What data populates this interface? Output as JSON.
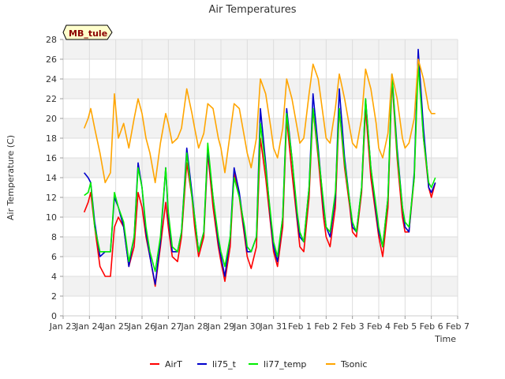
{
  "chart_data": {
    "type": "line",
    "title": "Air Temperatures",
    "xlabel": "Time",
    "ylabel": "Air Temperature (C)",
    "station_label": "MB_tule",
    "ylim": [
      0,
      28
    ],
    "yticks": [
      0,
      2,
      4,
      6,
      8,
      10,
      12,
      14,
      16,
      18,
      20,
      22,
      24,
      26,
      28
    ],
    "xlim": [
      0,
      15
    ],
    "xticks": [
      {
        "v": 0,
        "label": "Jan 23"
      },
      {
        "v": 1,
        "label": "Jan 24"
      },
      {
        "v": 2,
        "label": "Jan 25"
      },
      {
        "v": 3,
        "label": "Jan 26"
      },
      {
        "v": 4,
        "label": "Jan 27"
      },
      {
        "v": 5,
        "label": "Jan 28"
      },
      {
        "v": 6,
        "label": "Jan 29"
      },
      {
        "v": 7,
        "label": "Jan 30"
      },
      {
        "v": 8,
        "label": "Jan 31"
      },
      {
        "v": 9,
        "label": "Feb 1"
      },
      {
        "v": 10,
        "label": "Feb 2"
      },
      {
        "v": 11,
        "label": "Feb 3"
      },
      {
        "v": 12,
        "label": "Feb 4"
      },
      {
        "v": 13,
        "label": "Feb 5"
      },
      {
        "v": 14,
        "label": "Feb 6"
      },
      {
        "v": 15,
        "label": "Feb 7"
      }
    ],
    "grid": true,
    "legend_position": "bottom",
    "series": [
      {
        "name": "AirT",
        "color": "#ff0000",
        "x": [
          0.8,
          0.95,
          1.05,
          1.2,
          1.4,
          1.6,
          1.8,
          1.95,
          2.1,
          2.3,
          2.5,
          2.7,
          2.85,
          3.0,
          3.15,
          3.3,
          3.5,
          3.7,
          3.9,
          4.0,
          4.15,
          4.35,
          4.5,
          4.7,
          4.9,
          5.0,
          5.15,
          5.35,
          5.5,
          5.7,
          5.9,
          6.0,
          6.15,
          6.35,
          6.5,
          6.7,
          6.9,
          7.0,
          7.15,
          7.35,
          7.5,
          7.7,
          7.9,
          8.0,
          8.15,
          8.35,
          8.5,
          8.7,
          8.9,
          9.0,
          9.15,
          9.35,
          9.5,
          9.7,
          9.9,
          10.0,
          10.15,
          10.35,
          10.5,
          10.7,
          10.9,
          11.0,
          11.15,
          11.35,
          11.5,
          11.7,
          11.9,
          12.0,
          12.15,
          12.35,
          12.5,
          12.7,
          12.9,
          13.0,
          13.15,
          13.35,
          13.5,
          13.7,
          13.9,
          14.0,
          14.15
        ],
        "y": [
          10.5,
          11.5,
          12.5,
          9.0,
          5.0,
          4.0,
          4.0,
          9.0,
          10.0,
          9.0,
          5.0,
          7.0,
          12.5,
          11.0,
          8.0,
          6.0,
          3.0,
          7.0,
          11.5,
          9.0,
          6.0,
          5.5,
          8.0,
          15.5,
          12.0,
          9.0,
          6.0,
          8.0,
          16.5,
          11.0,
          7.0,
          5.5,
          3.5,
          7.0,
          14.5,
          12.0,
          8.0,
          6.0,
          4.8,
          7.0,
          18.0,
          14.0,
          9.0,
          6.5,
          5.0,
          9.0,
          20.0,
          14.5,
          9.5,
          7.0,
          6.5,
          12.0,
          21.0,
          16.0,
          10.0,
          8.0,
          7.0,
          11.0,
          21.0,
          15.0,
          11.0,
          8.5,
          8.0,
          12.5,
          21.0,
          14.0,
          10.0,
          8.0,
          6.0,
          11.0,
          24.0,
          16.0,
          10.0,
          8.5,
          8.5,
          14.0,
          26.5,
          18.0,
          13.0,
          12.0,
          13.5
        ]
      },
      {
        "name": "li75_t",
        "color": "#0000cc",
        "x": [
          0.8,
          0.95,
          1.05,
          1.2,
          1.4,
          1.6,
          1.8,
          1.95,
          2.1,
          2.3,
          2.5,
          2.7,
          2.85,
          3.0,
          3.15,
          3.3,
          3.5,
          3.7,
          3.9,
          4.0,
          4.15,
          4.35,
          4.5,
          4.7,
          4.9,
          5.0,
          5.15,
          5.35,
          5.5,
          5.7,
          5.9,
          6.0,
          6.15,
          6.35,
          6.5,
          6.7,
          6.9,
          7.0,
          7.15,
          7.35,
          7.5,
          7.7,
          7.9,
          8.0,
          8.15,
          8.35,
          8.5,
          8.7,
          8.9,
          9.0,
          9.15,
          9.35,
          9.5,
          9.7,
          9.9,
          10.0,
          10.15,
          10.35,
          10.5,
          10.7,
          10.9,
          11.0,
          11.15,
          11.35,
          11.5,
          11.7,
          11.9,
          12.0,
          12.15,
          12.35,
          12.5,
          12.7,
          12.9,
          13.0,
          13.15,
          13.35,
          13.5,
          13.7,
          13.9,
          14.0,
          14.15
        ],
        "y": [
          14.5,
          14.0,
          13.5,
          9.5,
          6.0,
          6.5,
          6.5,
          12.0,
          11.0,
          9.0,
          5.0,
          8.0,
          15.5,
          13.0,
          8.5,
          6.0,
          3.2,
          7.5,
          15.0,
          10.0,
          6.5,
          6.5,
          8.5,
          17.0,
          12.5,
          10.0,
          6.5,
          8.5,
          17.0,
          12.0,
          7.5,
          6.0,
          4.0,
          8.0,
          15.0,
          12.5,
          8.5,
          6.5,
          6.5,
          8.0,
          21.0,
          15.5,
          9.5,
          7.0,
          5.5,
          10.0,
          21.0,
          16.0,
          10.0,
          8.0,
          7.5,
          13.0,
          22.5,
          17.0,
          11.0,
          9.0,
          8.0,
          12.0,
          23.0,
          16.0,
          11.5,
          9.0,
          8.5,
          13.0,
          22.0,
          15.0,
          10.5,
          8.5,
          7.0,
          12.0,
          24.5,
          17.0,
          11.0,
          9.0,
          8.5,
          14.5,
          27.0,
          19.0,
          13.0,
          12.5,
          13.5
        ]
      },
      {
        "name": "li77_temp",
        "color": "#00ee00",
        "x": [
          0.8,
          0.95,
          1.05,
          1.2,
          1.4,
          1.6,
          1.8,
          1.95,
          2.1,
          2.3,
          2.5,
          2.7,
          2.85,
          3.0,
          3.15,
          3.3,
          3.5,
          3.7,
          3.9,
          4.0,
          4.15,
          4.35,
          4.5,
          4.7,
          4.9,
          5.0,
          5.15,
          5.35,
          5.5,
          5.7,
          5.9,
          6.0,
          6.15,
          6.35,
          6.5,
          6.7,
          6.9,
          7.0,
          7.15,
          7.35,
          7.5,
          7.7,
          7.9,
          8.0,
          8.15,
          8.35,
          8.5,
          8.7,
          8.9,
          9.0,
          9.15,
          9.35,
          9.5,
          9.7,
          9.9,
          10.0,
          10.15,
          10.35,
          10.5,
          10.7,
          10.9,
          11.0,
          11.15,
          11.35,
          11.5,
          11.7,
          11.9,
          12.0,
          12.15,
          12.35,
          12.5,
          12.7,
          12.9,
          13.0,
          13.15,
          13.35,
          13.5,
          13.7,
          13.9,
          14.0,
          14.15
        ],
        "y": [
          12.2,
          12.5,
          13.5,
          9.0,
          6.5,
          6.5,
          6.5,
          12.5,
          11.0,
          9.5,
          5.5,
          8.0,
          15.0,
          13.0,
          9.0,
          6.5,
          4.5,
          8.0,
          15.0,
          10.5,
          7.0,
          6.5,
          8.5,
          16.5,
          12.0,
          10.0,
          6.5,
          8.5,
          17.5,
          12.0,
          8.0,
          6.5,
          5.0,
          8.0,
          14.0,
          12.0,
          9.0,
          7.0,
          6.5,
          8.0,
          19.5,
          15.0,
          10.0,
          7.5,
          6.0,
          10.0,
          20.5,
          16.0,
          10.5,
          8.5,
          7.5,
          13.0,
          21.0,
          16.5,
          11.5,
          9.0,
          8.5,
          12.5,
          21.0,
          15.5,
          11.5,
          9.5,
          8.5,
          13.0,
          22.0,
          15.0,
          11.0,
          9.0,
          7.0,
          12.0,
          24.5,
          16.5,
          11.0,
          9.5,
          9.0,
          14.0,
          25.5,
          18.0,
          13.5,
          13.0,
          14.0
        ]
      },
      {
        "name": "Tsonic",
        "color": "#ffa500",
        "x": [
          0.8,
          0.95,
          1.05,
          1.2,
          1.4,
          1.6,
          1.8,
          1.95,
          2.1,
          2.3,
          2.5,
          2.7,
          2.85,
          3.0,
          3.15,
          3.3,
          3.5,
          3.7,
          3.9,
          4.0,
          4.15,
          4.35,
          4.5,
          4.7,
          4.9,
          5.0,
          5.15,
          5.35,
          5.5,
          5.7,
          5.9,
          6.0,
          6.15,
          6.35,
          6.5,
          6.7,
          6.9,
          7.0,
          7.15,
          7.35,
          7.5,
          7.7,
          7.9,
          8.0,
          8.15,
          8.35,
          8.5,
          8.7,
          8.9,
          9.0,
          9.15,
          9.35,
          9.5,
          9.7,
          9.9,
          10.0,
          10.15,
          10.35,
          10.5,
          10.7,
          10.9,
          11.0,
          11.15,
          11.35,
          11.5,
          11.7,
          11.9,
          12.0,
          12.15,
          12.35,
          12.5,
          12.7,
          12.9,
          13.0,
          13.15,
          13.35,
          13.5,
          13.7,
          13.9,
          14.0,
          14.15
        ],
        "y": [
          19.0,
          20.0,
          21.0,
          19.0,
          16.5,
          13.5,
          14.5,
          22.5,
          18.0,
          19.5,
          17.0,
          20.0,
          22.0,
          20.5,
          18.0,
          16.5,
          13.5,
          17.5,
          20.5,
          19.5,
          17.5,
          18.0,
          19.0,
          23.0,
          20.5,
          19.0,
          17.0,
          18.5,
          21.5,
          21.0,
          18.0,
          17.0,
          14.5,
          18.5,
          21.5,
          21.0,
          18.0,
          16.5,
          15.0,
          18.0,
          24.0,
          22.5,
          19.0,
          17.0,
          16.0,
          19.0,
          24.0,
          22.0,
          19.0,
          17.5,
          18.0,
          22.5,
          25.5,
          24.0,
          20.0,
          18.0,
          17.5,
          21.0,
          24.5,
          22.0,
          19.0,
          17.5,
          17.0,
          20.0,
          25.0,
          23.0,
          19.5,
          17.0,
          16.0,
          18.5,
          24.5,
          22.0,
          18.0,
          17.0,
          17.5,
          20.0,
          26.0,
          24.0,
          21.0,
          20.5,
          20.5
        ]
      }
    ]
  }
}
